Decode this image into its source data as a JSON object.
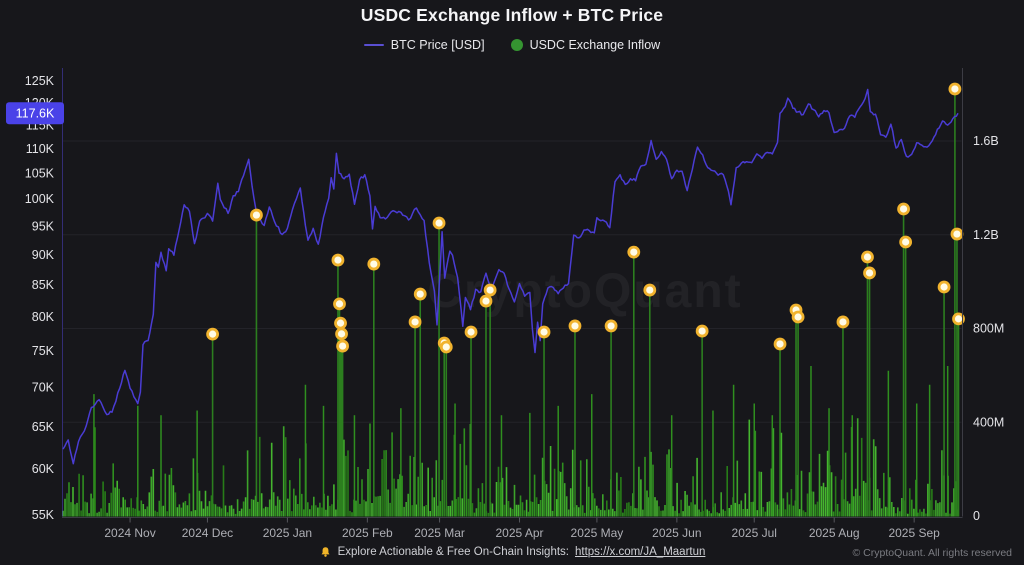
{
  "title": "USDC Exchange Inflow + BTC Price",
  "watermark": "CryptoQuant",
  "legend": [
    {
      "label": "BTC Price [USD]",
      "type": "line",
      "color": "#5a4fd2"
    },
    {
      "label": "USDC Exchange Inflow",
      "type": "dot",
      "color": "#359431"
    }
  ],
  "current_price_badge": {
    "label": "117.6K",
    "value": 117.6,
    "bg": "#4a42e8",
    "text_color": "#ffffff"
  },
  "footer": {
    "promo_text": "Explore Actionable & Free On-Chain Insights:",
    "promo_link": "https://x.com/JA_Maartun",
    "copyright": "© CryptoQuant. All rights reserved"
  },
  "colors": {
    "background": "#17171b",
    "btc_line": "#4a3cd4",
    "left_axis_line": "#4a40c0",
    "right_axis_line": "#3c3c44",
    "gridline": "#232329",
    "bar_greens": [
      "#2f8f1f",
      "#3ca32a",
      "#277c18",
      "#45b52f"
    ],
    "spike_green": "#2c7e1f",
    "marker_ring": "#f1b32e",
    "marker_fill": "#fffbe6",
    "axis_label": "#e3e3e7",
    "x_label": "#aeafb5",
    "watermark_opacity": 0.05
  },
  "chart_data": {
    "type": "line+bar",
    "title": "USDC Exchange Inflow + BTC Price",
    "left_axis": {
      "name": "BTC Price [USD]",
      "scale": "log",
      "tick_labels": [
        "125K",
        "120K",
        "115K",
        "110K",
        "105K",
        "100K",
        "95K",
        "90K",
        "85K",
        "80K",
        "75K",
        "70K",
        "65K",
        "60K",
        "55K"
      ],
      "tick_values_k": [
        125,
        120,
        115,
        110,
        105,
        100,
        95,
        90,
        85,
        80,
        75,
        70,
        65,
        60,
        55
      ],
      "current_value_k": 117.6
    },
    "right_axis": {
      "name": "USDC Exchange Inflow",
      "scale": "linear",
      "tick_labels": [
        "1.6B",
        "1.2B",
        "800M",
        "400M",
        "0"
      ],
      "tick_values_m": [
        1600,
        1200,
        800,
        400,
        0
      ]
    },
    "x_axis": {
      "tick_labels": [
        "2024 Nov",
        "2024 Dec",
        "2025 Jan",
        "2025 Feb",
        "2025 Mar",
        "2025 Apr",
        "2025 May",
        "2025 Jun",
        "2025 Jul",
        "2025 Aug",
        "2025 Sep"
      ],
      "tick_day_offsets": [
        26,
        56,
        87,
        118,
        146,
        177,
        207,
        238,
        268,
        299,
        330
      ],
      "days_total": 347
    },
    "btc_price_anchors_day_priceK": [
      [
        0,
        62.3
      ],
      [
        2,
        63.4
      ],
      [
        4,
        60.6
      ],
      [
        6,
        63.2
      ],
      [
        9,
        65.1
      ],
      [
        11,
        67.4
      ],
      [
        14,
        68.4
      ],
      [
        17,
        66.5
      ],
      [
        19,
        66.8
      ],
      [
        22,
        69.9
      ],
      [
        24,
        72.3
      ],
      [
        26,
        69.9
      ],
      [
        29,
        67.9
      ],
      [
        30,
        69.4
      ],
      [
        31,
        75.9
      ],
      [
        33,
        76.5
      ],
      [
        35,
        80.4
      ],
      [
        36,
        88.7
      ],
      [
        37,
        87.9
      ],
      [
        38,
        90.4
      ],
      [
        40,
        87.3
      ],
      [
        41,
        91.0
      ],
      [
        43,
        89.9
      ],
      [
        45,
        94.3
      ],
      [
        47,
        98.9
      ],
      [
        49,
        97.7
      ],
      [
        51,
        91.9
      ],
      [
        53,
        95.9
      ],
      [
        55,
        96.5
      ],
      [
        56,
        97.3
      ],
      [
        58,
        95.9
      ],
      [
        60,
        103.0
      ],
      [
        61,
        99.9
      ],
      [
        64,
        97.3
      ],
      [
        66,
        100.6
      ],
      [
        68,
        101.4
      ],
      [
        70,
        104.5
      ],
      [
        72,
        107.8
      ],
      [
        74,
        100.2
      ],
      [
        75,
        97.5
      ],
      [
        78,
        95.1
      ],
      [
        80,
        98.5
      ],
      [
        82,
        95.8
      ],
      [
        85,
        93.5
      ],
      [
        87,
        94.6
      ],
      [
        89,
        98.1
      ],
      [
        92,
        102.1
      ],
      [
        94,
        95.1
      ],
      [
        95,
        92.5
      ],
      [
        97,
        94.6
      ],
      [
        99,
        91.8
      ],
      [
        101,
        96.6
      ],
      [
        103,
        100.1
      ],
      [
        104,
        104.1
      ],
      [
        105,
        101.9
      ],
      [
        106,
        109.0
      ],
      [
        107,
        105.0
      ],
      [
        109,
        103.9
      ],
      [
        111,
        104.8
      ],
      [
        113,
        99.0
      ],
      [
        115,
        103.7
      ],
      [
        117,
        104.7
      ],
      [
        119,
        100.6
      ],
      [
        120,
        94.5
      ],
      [
        121,
        98.6
      ],
      [
        123,
        96.5
      ],
      [
        125,
        96.3
      ],
      [
        128,
        97.8
      ],
      [
        131,
        97.5
      ],
      [
        134,
        96.1
      ],
      [
        137,
        98.3
      ],
      [
        140,
        96.0
      ],
      [
        142,
        88.6
      ],
      [
        144,
        84.0
      ],
      [
        145,
        78.8
      ],
      [
        146,
        86.0
      ],
      [
        147,
        94.0
      ],
      [
        148,
        86.1
      ],
      [
        150,
        90.6
      ],
      [
        151,
        89.9
      ],
      [
        153,
        86.2
      ],
      [
        155,
        78.6
      ],
      [
        156,
        83.0
      ],
      [
        158,
        81.1
      ],
      [
        160,
        84.3
      ],
      [
        162,
        83.9
      ],
      [
        164,
        86.9
      ],
      [
        166,
        84.1
      ],
      [
        169,
        87.5
      ],
      [
        171,
        86.9
      ],
      [
        173,
        84.3
      ],
      [
        175,
        82.3
      ],
      [
        177,
        85.2
      ],
      [
        179,
        83.2
      ],
      [
        181,
        83.8
      ],
      [
        182,
        78.2
      ],
      [
        183,
        74.8
      ],
      [
        184,
        79.2
      ],
      [
        185,
        76.5
      ],
      [
        186,
        82.0
      ],
      [
        188,
        84.5
      ],
      [
        190,
        84.6
      ],
      [
        192,
        83.6
      ],
      [
        194,
        84.5
      ],
      [
        196,
        85.2
      ],
      [
        198,
        93.4
      ],
      [
        200,
        92.9
      ],
      [
        202,
        94.3
      ],
      [
        204,
        94.2
      ],
      [
        206,
        93.8
      ],
      [
        207,
        96.5
      ],
      [
        210,
        95.9
      ],
      [
        212,
        94.7
      ],
      [
        214,
        103.3
      ],
      [
        216,
        104.7
      ],
      [
        218,
        102.8
      ],
      [
        220,
        103.9
      ],
      [
        222,
        103.5
      ],
      [
        224,
        106.4
      ],
      [
        226,
        106.8
      ],
      [
        228,
        111.7
      ],
      [
        230,
        107.8
      ],
      [
        232,
        109.4
      ],
      [
        234,
        107.8
      ],
      [
        236,
        103.9
      ],
      [
        238,
        105.6
      ],
      [
        240,
        105.4
      ],
      [
        242,
        101.6
      ],
      [
        244,
        105.7
      ],
      [
        246,
        110.3
      ],
      [
        248,
        108.7
      ],
      [
        250,
        106.1
      ],
      [
        252,
        105.5
      ],
      [
        254,
        104.6
      ],
      [
        256,
        104.7
      ],
      [
        258,
        101.5
      ],
      [
        259,
        98.9
      ],
      [
        261,
        106.1
      ],
      [
        263,
        107.0
      ],
      [
        265,
        107.3
      ],
      [
        267,
        107.1
      ],
      [
        269,
        108.9
      ],
      [
        271,
        108.0
      ],
      [
        273,
        109.2
      ],
      [
        275,
        108.9
      ],
      [
        277,
        111.3
      ],
      [
        278,
        117.6
      ],
      [
        280,
        119.1
      ],
      [
        281,
        121.0
      ],
      [
        283,
        118.7
      ],
      [
        285,
        117.9
      ],
      [
        287,
        117.3
      ],
      [
        289,
        119.7
      ],
      [
        291,
        118.4
      ],
      [
        293,
        116.8
      ],
      [
        295,
        118.2
      ],
      [
        297,
        117.7
      ],
      [
        299,
        113.4
      ],
      [
        301,
        114.0
      ],
      [
        303,
        114.3
      ],
      [
        305,
        117.0
      ],
      [
        307,
        116.7
      ],
      [
        309,
        119.0
      ],
      [
        311,
        120.9
      ],
      [
        312,
        123.0
      ],
      [
        313,
        118.0
      ],
      [
        315,
        117.4
      ],
      [
        317,
        112.9
      ],
      [
        319,
        112.4
      ],
      [
        321,
        115.2
      ],
      [
        323,
        110.1
      ],
      [
        325,
        111.9
      ],
      [
        327,
        108.4
      ],
      [
        329,
        108.8
      ],
      [
        331,
        111.2
      ],
      [
        333,
        110.7
      ],
      [
        335,
        110.3
      ],
      [
        337,
        111.6
      ],
      [
        339,
        114.1
      ],
      [
        341,
        115.9
      ],
      [
        343,
        115.0
      ],
      [
        345,
        116.4
      ],
      [
        347,
        117.6
      ]
    ],
    "inflow_major_spikes_day_valueM": [
      [
        58,
        776
      ],
      [
        75,
        1284
      ],
      [
        106.6,
        1092
      ],
      [
        107.2,
        905
      ],
      [
        107.6,
        823
      ],
      [
        108.0,
        777
      ],
      [
        108.4,
        725
      ],
      [
        120.5,
        1075
      ],
      [
        136.5,
        828
      ],
      [
        138.5,
        947
      ],
      [
        145.8,
        1250
      ],
      [
        147.8,
        738
      ],
      [
        148.6,
        721
      ],
      [
        158.2,
        785
      ],
      [
        164.0,
        917
      ],
      [
        165.6,
        964
      ],
      [
        186.5,
        785
      ],
      [
        198.5,
        811
      ],
      [
        212.5,
        811
      ],
      [
        221.3,
        1126
      ],
      [
        227.5,
        964
      ],
      [
        247.8,
        789
      ],
      [
        278.0,
        734
      ],
      [
        284.2,
        879
      ],
      [
        285.0,
        849
      ],
      [
        302.4,
        828
      ],
      [
        311.9,
        1105
      ],
      [
        312.7,
        1037
      ],
      [
        325.9,
        1310
      ],
      [
        326.7,
        1169
      ],
      [
        341.6,
        977
      ],
      [
        345.8,
        1822
      ],
      [
        346.6,
        1203
      ],
      [
        347.2,
        841
      ]
    ],
    "inflow_minor_spikes_day_valueM": [
      [
        12,
        520
      ],
      [
        29,
        470
      ],
      [
        38,
        430
      ],
      [
        52,
        450
      ],
      [
        94,
        560
      ],
      [
        101,
        470
      ],
      [
        113,
        430
      ],
      [
        131,
        460
      ],
      [
        152,
        480
      ],
      [
        170,
        430
      ],
      [
        181,
        440
      ],
      [
        192,
        470
      ],
      [
        205,
        520
      ],
      [
        236,
        430
      ],
      [
        252,
        450
      ],
      [
        260,
        560
      ],
      [
        268,
        480
      ],
      [
        275,
        430
      ],
      [
        290,
        640
      ],
      [
        297,
        460
      ],
      [
        306,
        430
      ],
      [
        320,
        620
      ],
      [
        331,
        480
      ],
      [
        336,
        560
      ],
      [
        343,
        640
      ]
    ],
    "background_bars": {
      "count": 447,
      "min_m": 8,
      "max_m": 500,
      "seed": 1337
    }
  }
}
